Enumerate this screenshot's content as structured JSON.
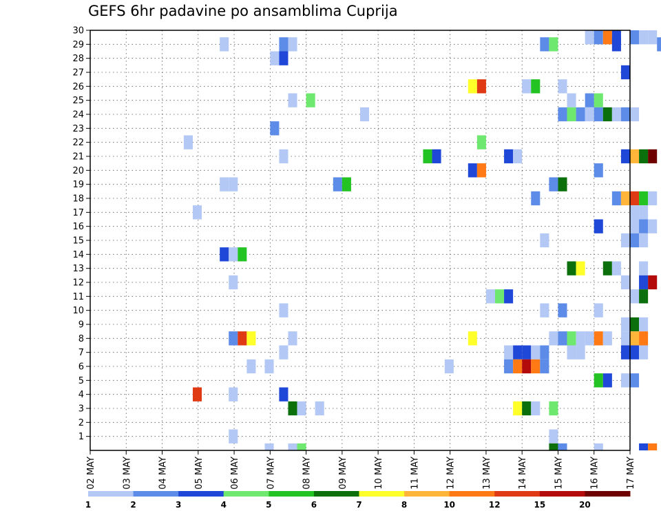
{
  "chart_data": {
    "type": "heatmap",
    "title": "GEFS 6hr padavine po ansamblima Cuprija",
    "y_ticks": [
      "1",
      "2",
      "3",
      "4",
      "5",
      "6",
      "7",
      "8",
      "9",
      "10",
      "11",
      "12",
      "13",
      "14",
      "15",
      "16",
      "17",
      "18",
      "19",
      "20",
      "21",
      "22",
      "23",
      "24",
      "25",
      "26",
      "27",
      "28",
      "29",
      "30"
    ],
    "x_ticks": [
      "02 MAY",
      "03 MAY",
      "04 MAY",
      "05 MAY",
      "06 MAY",
      "07 MAY",
      "08 MAY",
      "09 MAY",
      "10 MAY",
      "11 MAY",
      "12 MAY",
      "13 MAY",
      "14 MAY",
      "15 MAY",
      "16 MAY",
      "17 MAY"
    ],
    "x_range_days": [
      2,
      17
    ],
    "y_range": [
      0,
      30
    ],
    "steps_per_day": 4,
    "grid": true,
    "colorbar": {
      "labels": [
        "1",
        "2",
        "3",
        "4",
        "5",
        "6",
        "7",
        "8",
        "10",
        "12",
        "15",
        "20"
      ],
      "colors": [
        "#b3c8f5",
        "#5c8be8",
        "#1f48d8",
        "#6ee86e",
        "#22c322",
        "#0b700b",
        "#ffff2a",
        "#ffb43a",
        "#ff7a14",
        "#e03a14",
        "#b30b0b",
        "#6e0000"
      ]
    },
    "cells": [
      [
        15.75,
        30,
        1
      ],
      [
        16.0,
        30,
        2
      ],
      [
        16.25,
        30,
        9
      ],
      [
        16.5,
        30,
        3
      ],
      [
        17.0,
        30,
        2
      ],
      [
        17.25,
        30,
        1
      ],
      [
        17.5,
        30,
        1
      ],
      [
        5.6,
        29,
        1
      ],
      [
        7.25,
        29,
        2
      ],
      [
        7.5,
        29,
        1
      ],
      [
        14.5,
        29,
        2
      ],
      [
        14.75,
        29,
        4
      ],
      [
        16.5,
        29,
        3
      ],
      [
        17.75,
        29,
        2
      ],
      [
        18.0,
        29,
        2
      ],
      [
        7.0,
        28,
        1
      ],
      [
        7.25,
        28,
        3
      ],
      [
        16.75,
        27,
        3
      ],
      [
        12.5,
        26,
        7
      ],
      [
        12.75,
        26,
        10
      ],
      [
        14.0,
        26,
        1
      ],
      [
        14.25,
        26,
        5
      ],
      [
        15.0,
        26,
        1
      ],
      [
        7.5,
        25,
        1
      ],
      [
        8.0,
        25,
        4
      ],
      [
        15.25,
        25,
        1
      ],
      [
        15.75,
        25,
        2
      ],
      [
        16.0,
        25,
        4
      ],
      [
        9.5,
        24,
        1
      ],
      [
        15.0,
        24,
        2
      ],
      [
        15.25,
        24,
        4
      ],
      [
        15.5,
        24,
        2
      ],
      [
        15.75,
        24,
        1
      ],
      [
        16.0,
        24,
        2
      ],
      [
        16.25,
        24,
        6
      ],
      [
        16.5,
        24,
        1
      ],
      [
        16.75,
        24,
        2
      ],
      [
        17.0,
        24,
        1
      ],
      [
        7.0,
        23,
        2
      ],
      [
        4.6,
        22,
        1
      ],
      [
        12.75,
        22,
        4
      ],
      [
        7.25,
        21,
        1
      ],
      [
        11.25,
        21,
        5
      ],
      [
        11.5,
        21,
        3
      ],
      [
        13.5,
        21,
        3
      ],
      [
        13.75,
        21,
        1
      ],
      [
        16.75,
        21,
        3
      ],
      [
        17.0,
        21,
        8
      ],
      [
        17.25,
        21,
        6
      ],
      [
        17.5,
        21,
        12
      ],
      [
        12.5,
        20,
        3
      ],
      [
        12.75,
        20,
        9
      ],
      [
        16.0,
        20,
        2
      ],
      [
        5.6,
        19,
        1
      ],
      [
        5.85,
        19,
        1
      ],
      [
        8.75,
        19,
        2
      ],
      [
        9.0,
        19,
        5
      ],
      [
        14.75,
        19,
        2
      ],
      [
        15.0,
        19,
        6
      ],
      [
        14.25,
        18,
        2
      ],
      [
        16.5,
        18,
        2
      ],
      [
        16.75,
        18,
        8
      ],
      [
        17.0,
        18,
        10
      ],
      [
        17.25,
        18,
        5
      ],
      [
        17.5,
        18,
        1
      ],
      [
        4.85,
        17,
        1
      ],
      [
        17.0,
        17,
        1
      ],
      [
        17.25,
        17,
        1
      ],
      [
        16.0,
        16,
        3
      ],
      [
        17.0,
        16,
        1
      ],
      [
        17.25,
        16,
        2
      ],
      [
        17.5,
        16,
        1
      ],
      [
        14.5,
        15,
        1
      ],
      [
        16.75,
        15,
        1
      ],
      [
        17.0,
        15,
        2
      ],
      [
        17.25,
        15,
        1
      ],
      [
        5.6,
        14,
        3
      ],
      [
        5.85,
        14,
        1
      ],
      [
        6.1,
        14,
        5
      ],
      [
        15.25,
        13,
        6
      ],
      [
        15.5,
        13,
        7
      ],
      [
        16.25,
        13,
        6
      ],
      [
        16.5,
        13,
        1
      ],
      [
        17.25,
        13,
        1
      ],
      [
        5.85,
        12,
        1
      ],
      [
        16.75,
        12,
        1
      ],
      [
        17.25,
        12,
        3
      ],
      [
        17.5,
        12,
        11
      ],
      [
        13.0,
        11,
        1
      ],
      [
        13.25,
        11,
        4
      ],
      [
        13.5,
        11,
        3
      ],
      [
        17.0,
        11,
        1
      ],
      [
        17.25,
        11,
        6
      ],
      [
        7.25,
        10,
        1
      ],
      [
        14.5,
        10,
        1
      ],
      [
        15.0,
        10,
        2
      ],
      [
        16.0,
        10,
        1
      ],
      [
        16.75,
        9,
        1
      ],
      [
        17.0,
        9,
        6
      ],
      [
        17.25,
        9,
        1
      ],
      [
        5.85,
        8,
        2
      ],
      [
        6.1,
        8,
        10
      ],
      [
        6.35,
        8,
        7
      ],
      [
        7.5,
        8,
        1
      ],
      [
        12.5,
        8,
        7
      ],
      [
        14.75,
        8,
        1
      ],
      [
        15.0,
        8,
        2
      ],
      [
        15.25,
        8,
        4
      ],
      [
        15.5,
        8,
        1
      ],
      [
        15.75,
        8,
        1
      ],
      [
        16.0,
        8,
        9
      ],
      [
        16.25,
        8,
        1
      ],
      [
        16.75,
        8,
        1
      ],
      [
        17.0,
        8,
        8
      ],
      [
        17.25,
        8,
        9
      ],
      [
        7.25,
        7,
        1
      ],
      [
        13.5,
        7,
        1
      ],
      [
        13.75,
        7,
        3
      ],
      [
        14.0,
        7,
        3
      ],
      [
        14.25,
        7,
        1
      ],
      [
        14.5,
        7,
        2
      ],
      [
        15.25,
        7,
        1
      ],
      [
        15.5,
        7,
        1
      ],
      [
        16.75,
        7,
        3
      ],
      [
        17.0,
        7,
        3
      ],
      [
        17.25,
        7,
        1
      ],
      [
        6.35,
        6,
        1
      ],
      [
        6.85,
        6,
        1
      ],
      [
        11.85,
        6,
        1
      ],
      [
        13.5,
        6,
        2
      ],
      [
        13.75,
        6,
        9
      ],
      [
        14.0,
        6,
        11
      ],
      [
        14.25,
        6,
        9
      ],
      [
        14.5,
        6,
        2
      ],
      [
        16.0,
        5,
        5
      ],
      [
        16.25,
        5,
        3
      ],
      [
        16.75,
        5,
        1
      ],
      [
        17.0,
        5,
        2
      ],
      [
        4.85,
        4,
        10
      ],
      [
        5.85,
        4,
        1
      ],
      [
        7.25,
        4,
        3
      ],
      [
        7.5,
        3,
        6
      ],
      [
        7.75,
        3,
        1
      ],
      [
        8.25,
        3,
        1
      ],
      [
        13.75,
        3,
        7
      ],
      [
        14.0,
        3,
        6
      ],
      [
        14.25,
        3,
        1
      ],
      [
        14.75,
        3,
        4
      ],
      [
        5.85,
        1,
        1
      ],
      [
        14.75,
        1,
        1
      ],
      [
        6.85,
        0,
        1
      ],
      [
        7.5,
        0,
        1
      ],
      [
        7.75,
        0,
        4
      ],
      [
        14.75,
        0,
        6
      ],
      [
        15.0,
        0,
        2
      ],
      [
        16.0,
        0,
        1
      ],
      [
        17.25,
        0,
        3
      ],
      [
        17.5,
        0,
        9
      ]
    ]
  }
}
